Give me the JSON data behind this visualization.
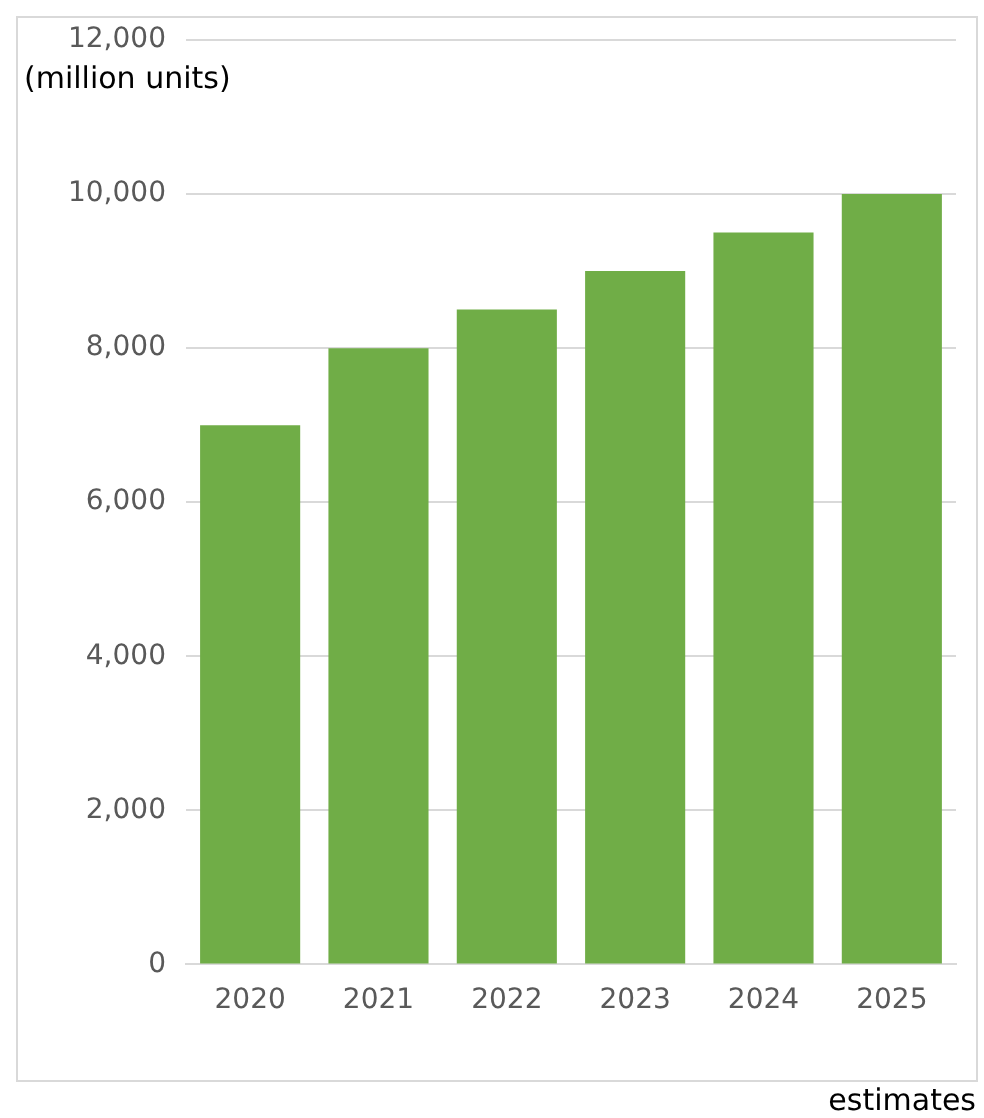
{
  "chart_data": {
    "type": "bar",
    "ylabel": "(million units)",
    "categories": [
      "2020",
      "2021",
      "2022",
      "2023",
      "2024",
      "2025"
    ],
    "values": [
      7000,
      8000,
      8500,
      9000,
      9500,
      10000
    ],
    "color": "#70ad47",
    "ylim": [
      0,
      12000
    ],
    "yticks": [
      0,
      {
        "value": 2000,
        "label": "2,000"
      },
      {
        "value": 4000,
        "label": "4,000"
      },
      {
        "value": 6000,
        "label": "6,000"
      },
      {
        "value": 8000,
        "label": "8,000"
      },
      {
        "value": 10000,
        "label": "10,000"
      },
      {
        "value": 12000,
        "label": "12,000"
      }
    ],
    "grid": "y",
    "annotations": [
      "estimates"
    ]
  }
}
